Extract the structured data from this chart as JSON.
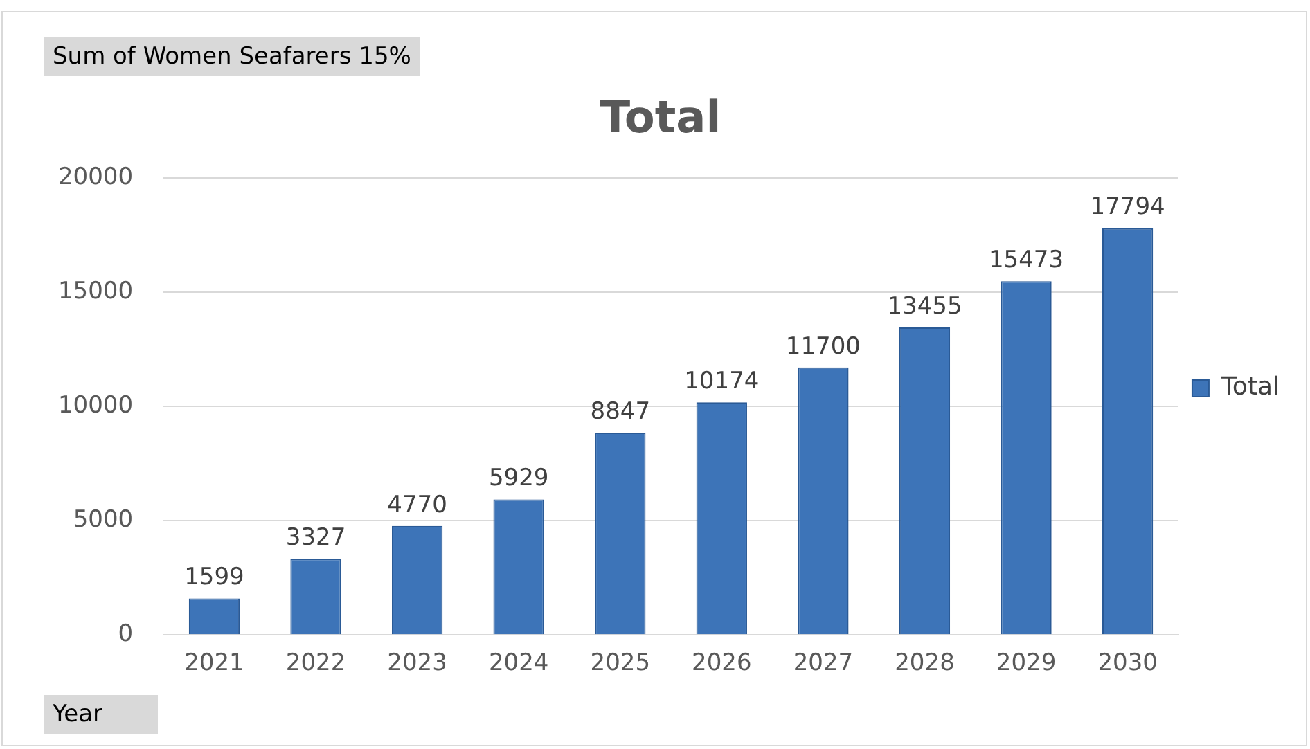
{
  "chart_data": {
    "type": "bar",
    "title": "Total",
    "xlabel": "Year",
    "annotations": [
      "Sum of Women Seafarers 15%"
    ],
    "categories": [
      "2021",
      "2022",
      "2023",
      "2024",
      "2025",
      "2026",
      "2027",
      "2028",
      "2029",
      "2030"
    ],
    "series": [
      {
        "name": "Total",
        "color": "#3d74b8",
        "values": [
          1599,
          3327,
          4770,
          5929,
          8847,
          10174,
          11700,
          13455,
          15473,
          17794
        ]
      }
    ],
    "ylim": [
      0,
      20000
    ],
    "yticks": [
      0,
      5000,
      10000,
      15000,
      20000
    ],
    "grid": "y",
    "legend": "right",
    "data_labels": true
  }
}
